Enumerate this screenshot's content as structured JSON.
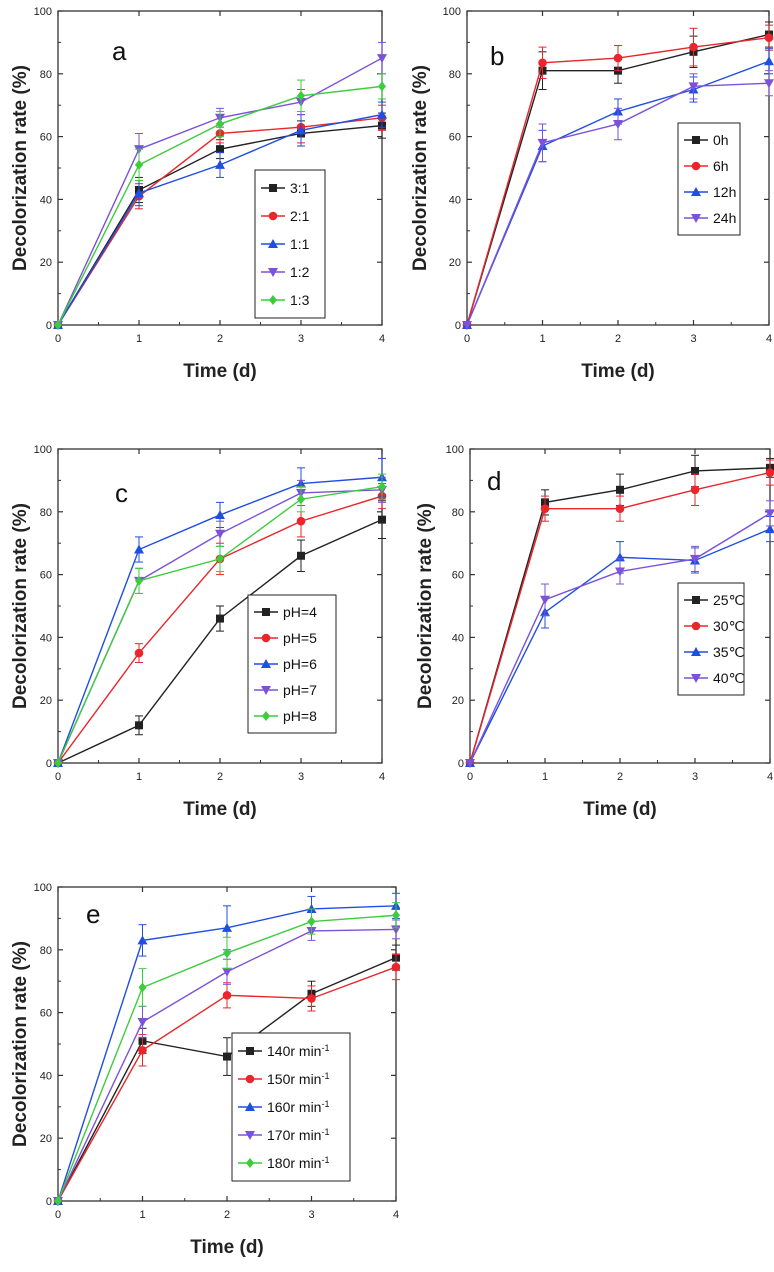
{
  "figure": {
    "charts": [
      {
        "id": "a",
        "panel_label": "a",
        "type": "line",
        "xlabel": "Time (d)",
        "ylabel": "Decolorization rate (%)",
        "x": [
          0,
          1,
          2,
          3,
          4
        ],
        "xlim": [
          0,
          4
        ],
        "ylim": [
          0,
          100
        ],
        "xticks": [
          "0",
          "1",
          "2",
          "3",
          "4"
        ],
        "yticks": [
          "0",
          "20",
          "40",
          "60",
          "80",
          "100"
        ],
        "legend_position": "right-middle",
        "series": [
          {
            "name": "3:1",
            "color": "#222222",
            "marker": "square",
            "values": [
              0,
              43,
              56,
              61,
              63.5
            ],
            "errors": [
              0,
              4,
              3,
              4,
              4
            ]
          },
          {
            "name": "2:1",
            "color": "#e8262b",
            "marker": "circle",
            "values": [
              0,
              41,
              61,
              63,
              66
            ],
            "errors": [
              0,
              4,
              3,
              5,
              4
            ]
          },
          {
            "name": "1:1",
            "color": "#1f4fe0",
            "marker": "triangle-up",
            "values": [
              0,
              42,
              51,
              62,
              67
            ],
            "errors": [
              0,
              4,
              4,
              5,
              4
            ]
          },
          {
            "name": "1:2",
            "color": "#7b52d9",
            "marker": "triangle-down",
            "values": [
              0,
              56,
              66,
              71,
              85
            ],
            "errors": [
              0,
              5,
              3,
              4,
              5
            ]
          },
          {
            "name": "1:3",
            "color": "#3dcc3d",
            "marker": "diamond",
            "values": [
              0,
              51,
              64,
              73,
              76
            ],
            "errors": [
              0,
              5,
              4,
              5,
              4
            ]
          }
        ]
      },
      {
        "id": "b",
        "panel_label": "b",
        "type": "line",
        "xlabel": "Time (d)",
        "ylabel": "Decolorization rate (%)",
        "x": [
          0,
          1,
          2,
          3,
          4
        ],
        "xlim": [
          0,
          4
        ],
        "ylim": [
          0,
          100
        ],
        "xticks": [
          "0",
          "1",
          "2",
          "3",
          "4"
        ],
        "yticks": [
          "0",
          "20",
          "40",
          "60",
          "80",
          "100"
        ],
        "legend_position": "right-middle",
        "series": [
          {
            "name": "0h",
            "color": "#222222",
            "marker": "square",
            "values": [
              0,
              81,
              81,
              87,
              92.5
            ],
            "errors": [
              0,
              6,
              4,
              5,
              4
            ]
          },
          {
            "name": "6h",
            "color": "#e8262b",
            "marker": "circle",
            "values": [
              0,
              83.5,
              85,
              88.5,
              91.5
            ],
            "errors": [
              0,
              5,
              4,
              6,
              4
            ]
          },
          {
            "name": "12h",
            "color": "#1f4fe0",
            "marker": "triangle-up",
            "values": [
              0,
              57,
              68,
              75,
              84
            ],
            "errors": [
              0,
              5,
              4,
              4,
              4
            ]
          },
          {
            "name": "24h",
            "color": "#7b52d9",
            "marker": "triangle-down",
            "values": [
              0,
              58,
              64,
              76,
              77
            ],
            "errors": [
              0,
              6,
              5,
              4,
              4
            ]
          }
        ]
      },
      {
        "id": "c",
        "panel_label": "c",
        "type": "line",
        "xlabel": "Time (d)",
        "ylabel": "Decolorization rate (%)",
        "x": [
          0,
          1,
          2,
          3,
          4
        ],
        "xlim": [
          0,
          4
        ],
        "ylim": [
          0,
          100
        ],
        "xticks": [
          "0",
          "1",
          "2",
          "3",
          "4"
        ],
        "yticks": [
          "0",
          "20",
          "40",
          "60",
          "80",
          "100"
        ],
        "legend_position": "right-bottom",
        "series": [
          {
            "name": "pH=4",
            "color": "#222222",
            "marker": "square",
            "values": [
              0,
              12,
              46,
              66,
              77.5
            ],
            "errors": [
              0,
              3,
              4,
              5,
              6
            ]
          },
          {
            "name": "pH=5",
            "color": "#e8262b",
            "marker": "circle",
            "values": [
              0,
              35,
              65,
              77,
              85
            ],
            "errors": [
              0,
              3,
              5,
              5,
              4
            ]
          },
          {
            "name": "pH=6",
            "color": "#1f4fe0",
            "marker": "triangle-up",
            "values": [
              0,
              68,
              79,
              89,
              91
            ],
            "errors": [
              0,
              4,
              4,
              5,
              6
            ]
          },
          {
            "name": "pH=7",
            "color": "#7b52d9",
            "marker": "triangle-down",
            "values": [
              0,
              58,
              73,
              86,
              87
            ],
            "errors": [
              0,
              4,
              4,
              4,
              4
            ]
          },
          {
            "name": "pH=8",
            "color": "#3dcc3d",
            "marker": "diamond",
            "values": [
              0,
              58,
              65,
              84,
              88
            ],
            "errors": [
              0,
              4,
              4,
              4,
              4
            ]
          }
        ]
      },
      {
        "id": "d",
        "panel_label": "d",
        "type": "line",
        "xlabel": "Time (d)",
        "ylabel": "Decolorization rate (%)",
        "x": [
          0,
          1,
          2,
          3,
          4
        ],
        "xlim": [
          0,
          4
        ],
        "ylim": [
          0,
          100
        ],
        "xticks": [
          "0",
          "1",
          "2",
          "3",
          "4"
        ],
        "yticks": [
          "0",
          "20",
          "40",
          "60",
          "80",
          "100"
        ],
        "legend_position": "right-middle",
        "series": [
          {
            "name": "25℃",
            "color": "#222222",
            "marker": "square",
            "values": [
              0,
              83,
              87,
              93,
              94
            ],
            "errors": [
              0,
              4,
              5,
              5,
              3
            ]
          },
          {
            "name": "30℃",
            "color": "#e8262b",
            "marker": "circle",
            "values": [
              0,
              81,
              81,
              87,
              92.5
            ],
            "errors": [
              0,
              4,
              4,
              5,
              4
            ]
          },
          {
            "name": "35℃",
            "color": "#1f4fe0",
            "marker": "triangle-up",
            "values": [
              0,
              48,
              65.5,
              64.5,
              74.5
            ],
            "errors": [
              0,
              5,
              5,
              4,
              4
            ]
          },
          {
            "name": "40℃",
            "color": "#7b52d9",
            "marker": "triangle-down",
            "values": [
              0,
              52,
              61,
              65,
              79.5
            ],
            "errors": [
              0,
              5,
              4,
              4,
              4
            ]
          }
        ]
      },
      {
        "id": "e",
        "panel_label": "e",
        "type": "line",
        "xlabel": "Time (d)",
        "ylabel": "Decolorization rate (%)",
        "x": [
          0,
          1,
          2,
          3,
          4
        ],
        "xlim": [
          0,
          4
        ],
        "ylim": [
          0,
          100
        ],
        "xticks": [
          "0",
          "1",
          "2",
          "3",
          "4"
        ],
        "yticks": [
          "0",
          "20",
          "40",
          "60",
          "80",
          "100"
        ],
        "legend_position": "right-bottom",
        "series": [
          {
            "name": "140r min",
            "superscript": "-1",
            "color": "#222222",
            "marker": "square",
            "values": [
              0,
              51,
              46,
              66,
              77.5
            ],
            "errors": [
              0,
              4,
              6,
              4,
              4
            ]
          },
          {
            "name": "150r min",
            "superscript": "-1",
            "color": "#e8262b",
            "marker": "circle",
            "values": [
              0,
              48,
              65.5,
              64.5,
              74.5
            ],
            "errors": [
              0,
              5,
              4,
              4,
              4
            ]
          },
          {
            "name": "160r min",
            "superscript": "-1",
            "color": "#1f4fe0",
            "marker": "triangle-up",
            "values": [
              0,
              83,
              87,
              93,
              94
            ],
            "errors": [
              0,
              5,
              7,
              4,
              4
            ]
          },
          {
            "name": "170r min",
            "superscript": "-1",
            "color": "#7b52d9",
            "marker": "triangle-down",
            "values": [
              0,
              57,
              73,
              86,
              86.5
            ],
            "errors": [
              0,
              5,
              4,
              3,
              3
            ]
          },
          {
            "name": "180r min",
            "superscript": "-1",
            "color": "#3dcc3d",
            "marker": "diamond",
            "values": [
              0,
              68,
              79,
              89,
              91
            ],
            "errors": [
              0,
              6,
              5,
              4,
              4
            ]
          }
        ]
      }
    ]
  }
}
